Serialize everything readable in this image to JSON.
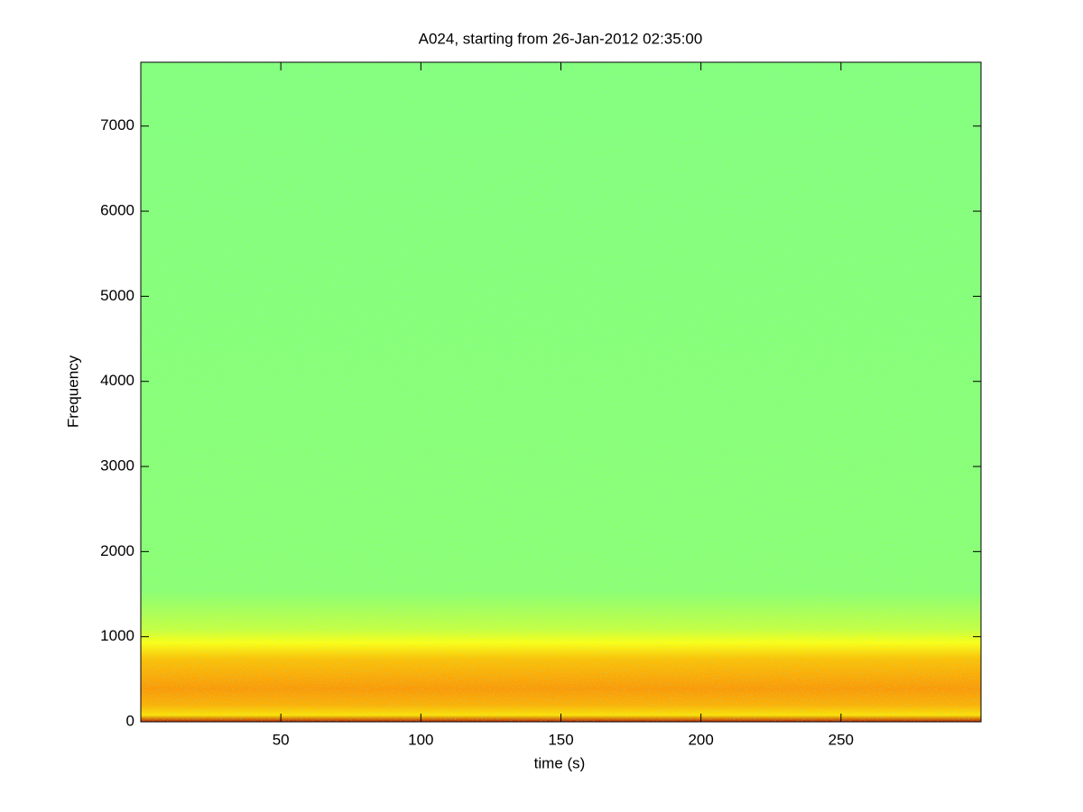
{
  "chart_data": {
    "type": "spectrogram",
    "title": "A024, starting from 26-Jan-2012 02:35:00",
    "x_label": "time (s)",
    "y_label": "Frequency",
    "xlim": [
      0,
      300
    ],
    "xticks": [
      50,
      100,
      150,
      200,
      250
    ],
    "ylim": [
      0,
      7750
    ],
    "yticks": [
      0,
      1000,
      2000,
      3000,
      4000,
      5000,
      6000,
      7000
    ],
    "grid": false
  }
}
